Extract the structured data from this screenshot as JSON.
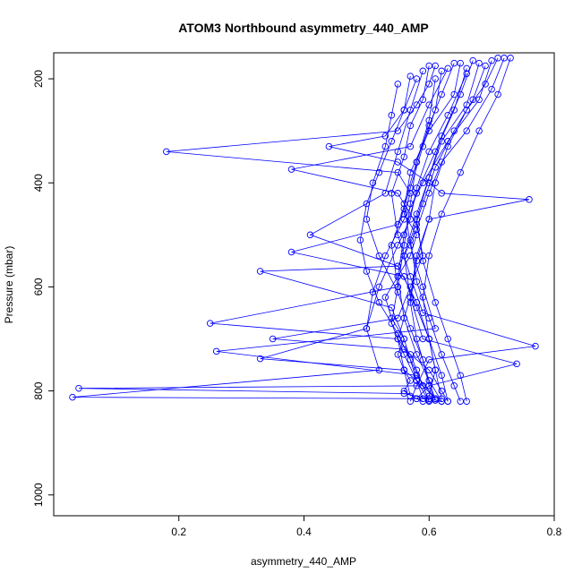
{
  "chart_data": {
    "type": "line",
    "title": "ATOM3 Northbound asymmetry_440_AMP",
    "xlabel": "asymmetry_440_AMP",
    "ylabel": "Pressure (mbar)",
    "xlim": [
      0.0,
      0.8
    ],
    "ylim": [
      1040,
      150
    ],
    "y_reversed": true,
    "x_ticks": [
      0.2,
      0.4,
      0.6,
      0.8
    ],
    "x_tick_labels": [
      "0.2",
      "0.4",
      "0.6",
      "0.8"
    ],
    "y_ticks": [
      200,
      400,
      600,
      800,
      1000
    ],
    "y_tick_labels": [
      "200",
      "400",
      "600",
      "800",
      "1000"
    ],
    "grid": false,
    "legend": "none",
    "markers": "open-circle",
    "color": "#0000ff",
    "series": [
      {
        "x": [
          0.61,
          0.6,
          0.58,
          0.55,
          0.18,
          0.55,
          0.57,
          0.56,
          0.58,
          0.57,
          0.55,
          0.53,
          0.54,
          0.56,
          0.55,
          0.56,
          0.57,
          0.56,
          0.58,
          0.59
        ],
        "y": [
          175,
          210,
          250,
          300,
          340,
          380,
          420,
          460,
          500,
          540,
          580,
          620,
          660,
          700,
          730,
          760,
          780,
          800,
          815,
          820
        ]
      },
      {
        "x": [
          0.65,
          0.64,
          0.6,
          0.57,
          0.56,
          0.54,
          0.55,
          0.25,
          0.55,
          0.57,
          0.58,
          0.59,
          0.04,
          0.56,
          0.6
        ],
        "y": [
          170,
          230,
          300,
          380,
          450,
          520,
          600,
          670,
          700,
          730,
          760,
          790,
          795,
          805,
          815
        ]
      },
      {
        "x": [
          0.7,
          0.68,
          0.63,
          0.59,
          0.56,
          0.53,
          0.51,
          0.5,
          0.52,
          0.03,
          0.6,
          0.62
        ],
        "y": [
          165,
          240,
          320,
          400,
          470,
          540,
          610,
          680,
          760,
          812,
          815,
          820
        ]
      },
      {
        "x": [
          0.58,
          0.56,
          0.53,
          0.44,
          0.55,
          0.6,
          0.62,
          0.76,
          0.6,
          0.58,
          0.57,
          0.55,
          0.56,
          0.57
        ],
        "y": [
          200,
          260,
          310,
          330,
          360,
          400,
          420,
          432,
          470,
          540,
          620,
          700,
          760,
          810
        ]
      },
      {
        "x": [
          0.63,
          0.6,
          0.57,
          0.38,
          0.55,
          0.58,
          0.59,
          0.57,
          0.55,
          0.35,
          0.56,
          0.6,
          0.62,
          0.63
        ],
        "y": [
          180,
          250,
          330,
          374,
          420,
          480,
          540,
          600,
          660,
          700,
          720,
          760,
          800,
          820
        ]
      },
      {
        "x": [
          0.72,
          0.7,
          0.66,
          0.62,
          0.6,
          0.58,
          0.56,
          0.55,
          0.33,
          0.54,
          0.56,
          0.58,
          0.6
        ],
        "y": [
          160,
          220,
          300,
          360,
          420,
          490,
          540,
          560,
          570,
          640,
          700,
          780,
          820
        ]
      },
      {
        "x": [
          0.66,
          0.63,
          0.6,
          0.58,
          0.57,
          0.55,
          0.52,
          0.5,
          0.33,
          0.56,
          0.59,
          0.61
        ],
        "y": [
          190,
          270,
          340,
          410,
          470,
          520,
          600,
          680,
          738,
          760,
          790,
          815
        ]
      },
      {
        "x": [
          0.6,
          0.59,
          0.57,
          0.56,
          0.54,
          0.55,
          0.57,
          0.59,
          0.77,
          0.6,
          0.58,
          0.57
        ],
        "y": [
          175,
          240,
          290,
          350,
          420,
          500,
          580,
          650,
          714,
          740,
          790,
          820
        ]
      },
      {
        "x": [
          0.68,
          0.66,
          0.62,
          0.6,
          0.58,
          0.56,
          0.57,
          0.59,
          0.74,
          0.6,
          0.58
        ],
        "y": [
          170,
          250,
          320,
          390,
          460,
          540,
          620,
          700,
          748,
          790,
          815
        ]
      },
      {
        "x": [
          0.62,
          0.61,
          0.59,
          0.57,
          0.55,
          0.38,
          0.56,
          0.58,
          0.6,
          0.61,
          0.6
        ],
        "y": [
          185,
          260,
          330,
          410,
          480,
          533,
          580,
          640,
          700,
          760,
          810
        ]
      },
      {
        "x": [
          0.71,
          0.69,
          0.66,
          0.63,
          0.61,
          0.6,
          0.58,
          0.57,
          0.58,
          0.6,
          0.62
        ],
        "y": [
          160,
          210,
          260,
          330,
          400,
          470,
          550,
          630,
          700,
          780,
          820
        ]
      },
      {
        "x": [
          0.57,
          0.56,
          0.54,
          0.52,
          0.5,
          0.49,
          0.5,
          0.52,
          0.55,
          0.57,
          0.59,
          0.6
        ],
        "y": [
          195,
          260,
          320,
          380,
          440,
          510,
          570,
          630,
          690,
          740,
          790,
          818
        ]
      },
      {
        "x": [
          0.64,
          0.62,
          0.6,
          0.58,
          0.56,
          0.57,
          0.59,
          0.61,
          0.26,
          0.58,
          0.61
        ],
        "y": [
          170,
          230,
          290,
          360,
          440,
          520,
          600,
          680,
          724,
          770,
          815
        ]
      },
      {
        "x": [
          0.69,
          0.67,
          0.64,
          0.61,
          0.59,
          0.57,
          0.58,
          0.6,
          0.62,
          0.64,
          0.65
        ],
        "y": [
          175,
          240,
          300,
          370,
          440,
          510,
          590,
          660,
          730,
          790,
          820
        ]
      },
      {
        "x": [
          0.55,
          0.54,
          0.53,
          0.51,
          0.5,
          0.52,
          0.55,
          0.57,
          0.59,
          0.6,
          0.61
        ],
        "y": [
          210,
          270,
          330,
          400,
          470,
          540,
          610,
          680,
          740,
          790,
          818
        ]
      },
      {
        "x": [
          0.67,
          0.65,
          0.62,
          0.6,
          0.58,
          0.59,
          0.61,
          0.63,
          0.65,
          0.66
        ],
        "y": [
          165,
          230,
          310,
          390,
          470,
          550,
          630,
          700,
          770,
          820
        ]
      },
      {
        "x": [
          0.59,
          0.57,
          0.55,
          0.53,
          0.41,
          0.55,
          0.58,
          0.6,
          0.61,
          0.62
        ],
        "y": [
          185,
          260,
          340,
          420,
          500,
          560,
          630,
          700,
          760,
          815
        ]
      },
      {
        "x": [
          0.73,
          0.71,
          0.68,
          0.65,
          0.62,
          0.6,
          0.59,
          0.6,
          0.62,
          0.63
        ],
        "y": [
          160,
          230,
          300,
          380,
          460,
          540,
          620,
          700,
          770,
          820
        ]
      },
      {
        "x": [
          0.61,
          0.6,
          0.58,
          0.57,
          0.56,
          0.55,
          0.54,
          0.56,
          0.58,
          0.59
        ],
        "y": [
          200,
          280,
          360,
          440,
          520,
          600,
          670,
          730,
          780,
          815
        ]
      },
      {
        "x": [
          0.66,
          0.64,
          0.61,
          0.58,
          0.56,
          0.55,
          0.56,
          0.58,
          0.6,
          0.61
        ],
        "y": [
          180,
          260,
          340,
          420,
          500,
          580,
          660,
          730,
          780,
          818
        ]
      }
    ]
  }
}
